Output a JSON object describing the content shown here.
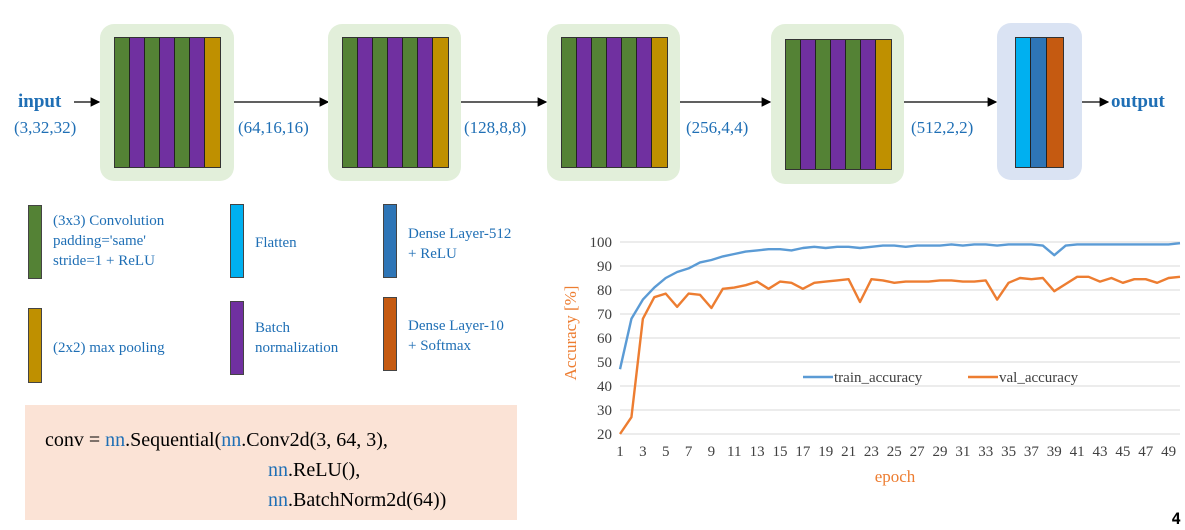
{
  "diagram": {
    "input_label": "input",
    "output_label": "output",
    "shapes": [
      "(3,32,32)",
      "(64,16,16)",
      "(128,8,8)",
      "(256,4,4)",
      "(512,2,2)"
    ],
    "block_bg": "#E2EFDA",
    "final_block_bg": "#DAE3F3"
  },
  "legend": {
    "conv": "(3x3) Convolution\npadding='same'\nstride=1 + ReLU",
    "pool": "(2x2) max pooling",
    "flatten": "Flatten",
    "batchnorm": "Batch\nnormalization",
    "dense512": "Dense Layer-512\n+ ReLU",
    "dense10": "Dense Layer-10\n+ Softmax",
    "colors": {
      "conv": "#548235",
      "batchnorm": "#7030A0",
      "pool": "#BF9000",
      "flatten": "#00B0F0",
      "dense512": "#2E75B6",
      "dense10": "#C55A11"
    }
  },
  "code": {
    "line1_prefix": "conv = ",
    "nn1": "nn",
    "line1_rest": ".Sequential(",
    "nn2": "nn",
    "line1_end": ".Conv2d(3, 64, 3),",
    "nn3": "nn",
    "line2_rest": ".ReLU(),",
    "nn4": "nn",
    "line3_rest": ".BatchNorm2d(64))"
  },
  "page_number": "4",
  "chart_data": {
    "type": "line",
    "xlabel": "epoch",
    "ylabel": "Accuracy [%]",
    "ylim": [
      20,
      100
    ],
    "yticks": [
      20,
      30,
      40,
      50,
      60,
      70,
      80,
      90,
      100
    ],
    "xticks": [
      1,
      3,
      5,
      7,
      9,
      11,
      13,
      15,
      17,
      19,
      21,
      23,
      25,
      27,
      29,
      31,
      33,
      35,
      37,
      39,
      41,
      43,
      45,
      47,
      49
    ],
    "x": [
      1,
      2,
      3,
      4,
      5,
      6,
      7,
      8,
      9,
      10,
      11,
      12,
      13,
      14,
      15,
      16,
      17,
      18,
      19,
      20,
      21,
      22,
      23,
      24,
      25,
      26,
      27,
      28,
      29,
      30,
      31,
      32,
      33,
      34,
      35,
      36,
      37,
      38,
      39,
      40,
      41,
      42,
      43,
      44,
      45,
      46,
      47,
      48,
      49,
      50
    ],
    "legend_position": "center-right",
    "grid": "horizontal",
    "series": [
      {
        "name": "train_accuracy",
        "color": "#5B9BD5",
        "values": [
          47,
          68,
          76,
          81,
          85,
          87.5,
          89,
          91.5,
          92.5,
          94,
          95,
          96,
          96.5,
          97,
          97,
          96.5,
          97.5,
          98,
          97.5,
          98,
          98,
          97.5,
          98,
          98.5,
          98.5,
          98,
          98.5,
          98.5,
          98.5,
          99,
          98.5,
          99,
          99,
          98.5,
          99,
          99,
          99,
          98.5,
          94.5,
          98.5,
          99,
          99,
          99,
          99,
          99,
          99,
          99,
          99,
          99,
          99.5
        ]
      },
      {
        "name": "val_accuracy",
        "color": "#ED7D31",
        "values": [
          20,
          27,
          68,
          77,
          78.5,
          73,
          78.5,
          78,
          72.5,
          80.5,
          81,
          82,
          83.5,
          80.5,
          83.5,
          83,
          80.5,
          83,
          83.5,
          84,
          84.5,
          75,
          84.5,
          84,
          83,
          83.5,
          83.5,
          83.5,
          84,
          84,
          83.5,
          83.5,
          84,
          76,
          83,
          85,
          84.5,
          85,
          79.5,
          82.5,
          85.5,
          85.5,
          83.5,
          85,
          83,
          84.5,
          84.5,
          83,
          85,
          85.5
        ]
      }
    ]
  }
}
